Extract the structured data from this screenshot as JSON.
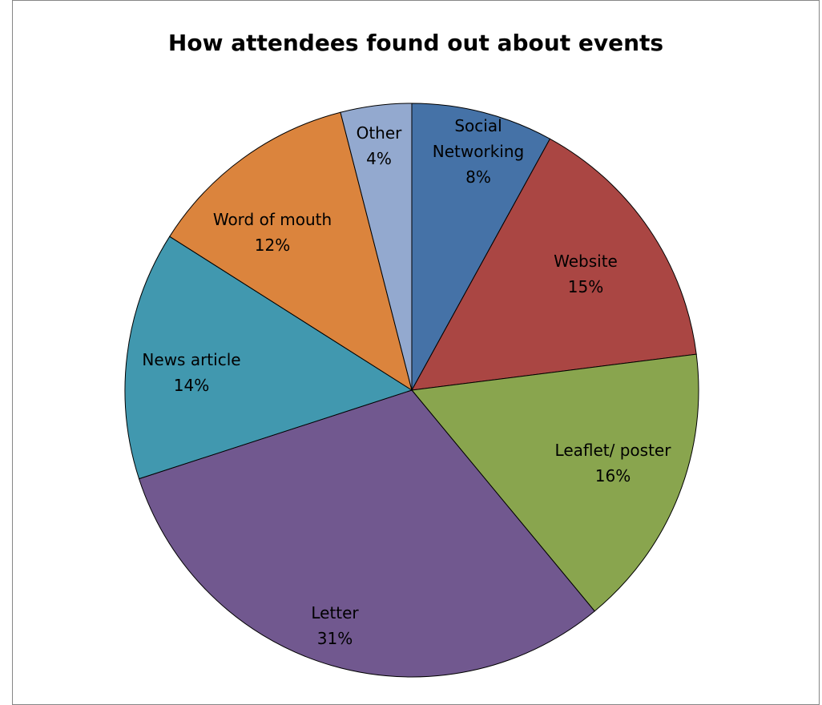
{
  "chart_data": {
    "type": "pie",
    "title": "How attendees found out about events",
    "categories": [
      "Social Networking",
      "Website",
      "Leaflet/ poster",
      "Letter",
      "News article",
      "Word of mouth",
      "Other"
    ],
    "values": [
      8,
      15,
      16,
      31,
      14,
      12,
      4
    ],
    "value_labels": [
      "8%",
      "15%",
      "16%",
      "31%",
      "14%",
      "12%",
      "4%"
    ],
    "colors": [
      "#4572A7",
      "#AA4643",
      "#89A54E",
      "#71588F",
      "#4198AF",
      "#DB843D",
      "#93A9CF"
    ],
    "start_angle": "12 o'clock",
    "direction": "clockwise",
    "legend": "none",
    "data_labels": "inside"
  }
}
